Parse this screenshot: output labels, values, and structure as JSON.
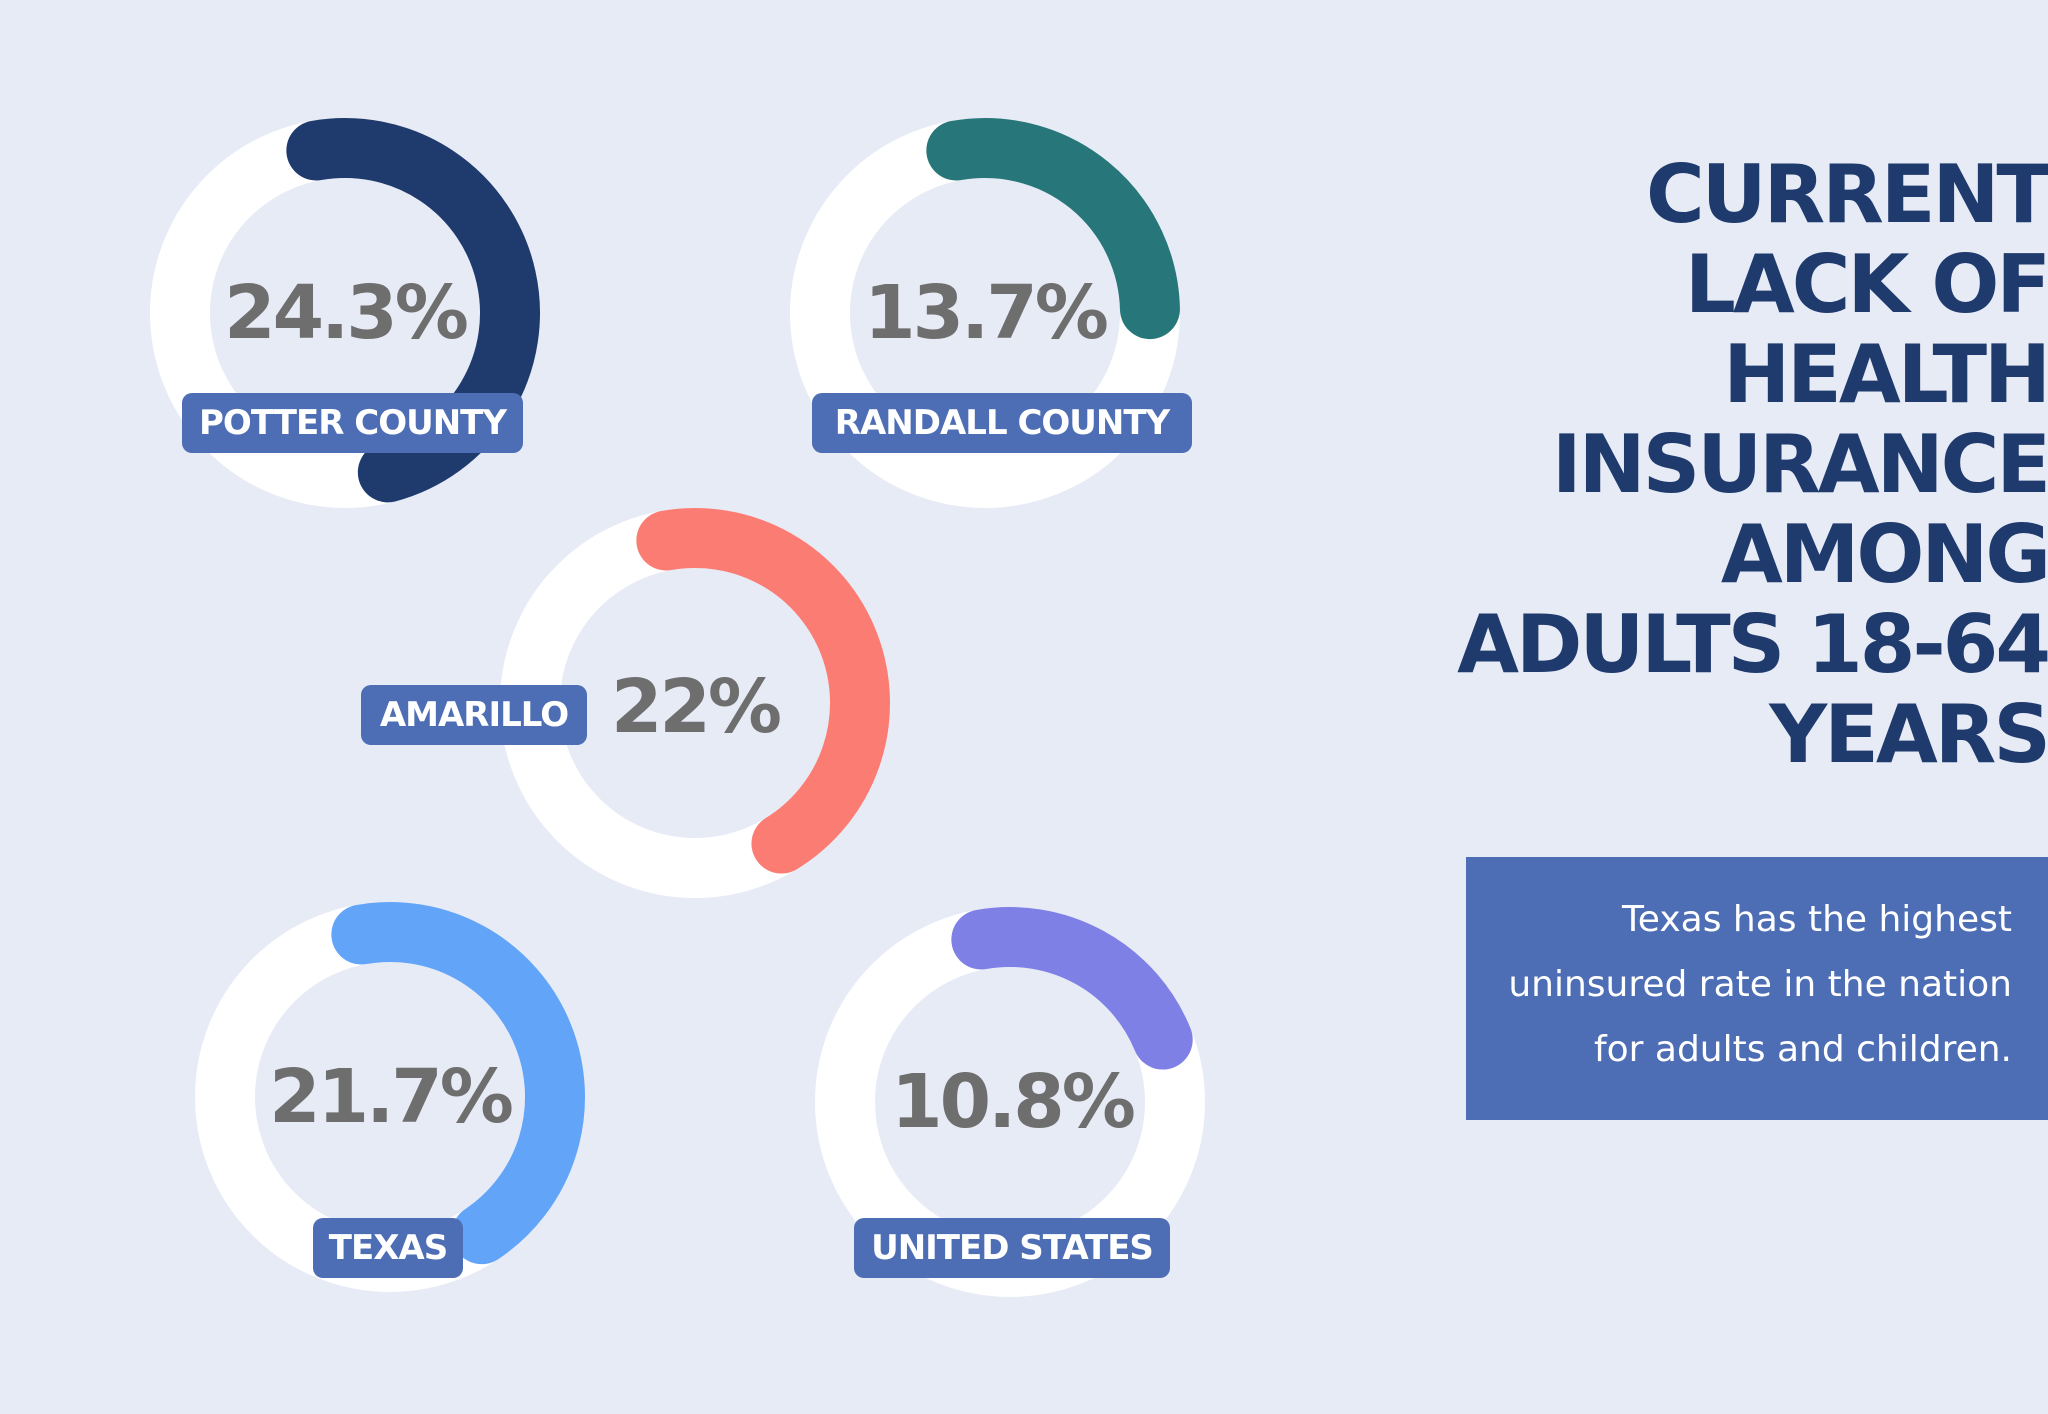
{
  "title": {
    "lines": [
      "CURRENT",
      "LACK OF",
      "HEALTH",
      "INSURANCE",
      "AMONG",
      "ADULTS 18-64",
      "YEARS"
    ]
  },
  "note": {
    "lines": [
      "Texas has the highest",
      "uninsured rate in the nation",
      "for adults and children."
    ]
  },
  "colors": {
    "background": "#e7ebf6",
    "ring": "#ffffff",
    "badge": "#4d6db4",
    "title": "#1f3a6c",
    "value_text": "#6e6e6e"
  },
  "chart_data": {
    "type": "donut",
    "title": "CURRENT LACK OF HEALTH INSURANCE AMONG ADULTS 18-64 YEARS",
    "unit": "%",
    "max": 100,
    "items": [
      {
        "label": "POTTER COUNTY",
        "value": 24.3,
        "display": "24.3%",
        "color": "#1f3a6c"
      },
      {
        "label": "RANDALL COUNTY",
        "value": 13.7,
        "display": "13.7%",
        "color": "#27767a"
      },
      {
        "label": "AMARILLO",
        "value": 22,
        "display": "22%",
        "color": "#fb7c73"
      },
      {
        "label": "TEXAS",
        "value": 21.7,
        "display": "21.7%",
        "color": "#62a5f8"
      },
      {
        "label": "UNITED STATES",
        "value": 10.8,
        "display": "10.8%",
        "color": "#7f80e6"
      }
    ]
  }
}
